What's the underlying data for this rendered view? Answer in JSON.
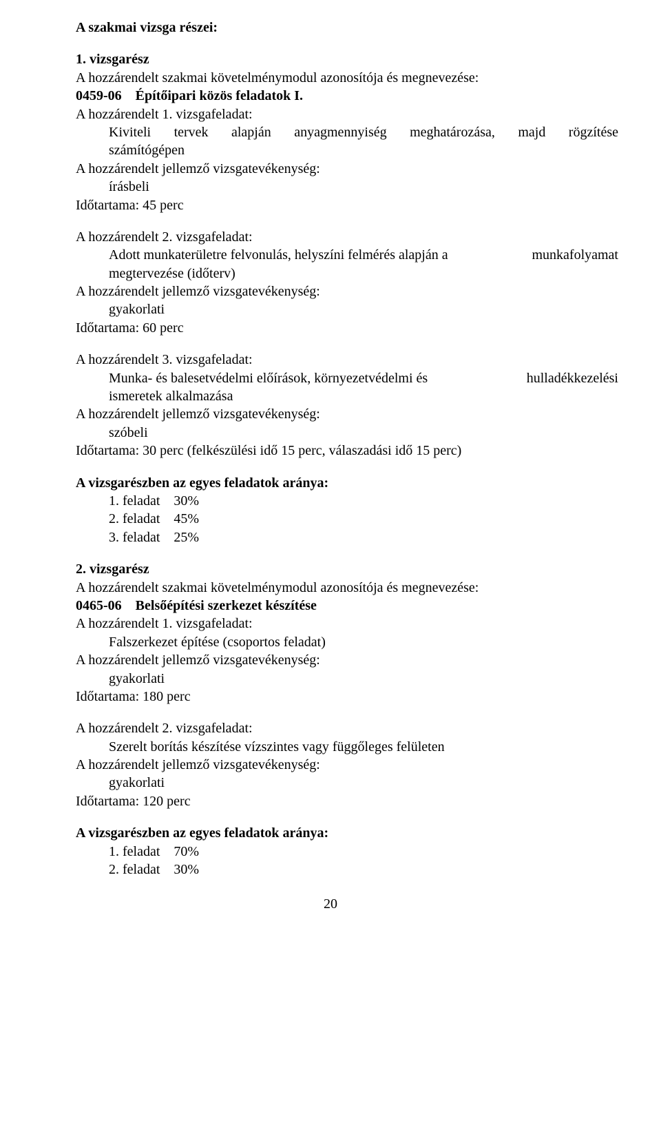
{
  "title": "A szakmai vizsga részei:",
  "part1": {
    "heading": "1. vizsgarész",
    "mod_line": "A hozzárendelt szakmai követelménymodul azonosítója és megnevezése:",
    "mod_code": "0459-06",
    "mod_name": "Építőipari közös feladatok I.",
    "task1": {
      "head": "A hozzárendelt 1. vizsgafeladat:",
      "desc_l": "Kiviteli",
      "desc_m1": "tervek",
      "desc_m2": "alapján",
      "desc_m3": "anyagmennyiség",
      "desc_m4": "meghatározása,",
      "desc_m5": "majd",
      "desc_r": "rögzítése",
      "desc2": "számítógépen",
      "act_label": "A hozzárendelt jellemző vizsgatevékenység:",
      "act": "írásbeli",
      "dur": "Időtartama:  45 perc"
    },
    "task2": {
      "head": "A hozzárendelt 2. vizsgafeladat:",
      "desc_l": "Adott munkaterületre felvonulás, helyszíni felmérés alapján a",
      "desc_r": "munkafolyamat",
      "desc2": "megtervezése (időterv)",
      "act_label": "A hozzárendelt jellemző vizsgatevékenység:",
      "act": "gyakorlati",
      "dur": "Időtartama:  60 perc"
    },
    "task3": {
      "head": "A hozzárendelt 3. vizsgafeladat:",
      "desc_l": "Munka- és balesetvédelmi előírások, környezetvédelmi és",
      "desc_r": "hulladékkezelési",
      "desc2": "ismeretek alkalmazása",
      "act_label": "A hozzárendelt jellemző vizsgatevékenység:",
      "act": "szóbeli",
      "dur": "Időtartama:  30 perc (felkészülési idő 15 perc, válaszadási idő 15 perc)"
    },
    "ratios": {
      "heading": "A vizsgarészben az egyes feladatok aránya:",
      "rows": [
        {
          "label": "1. feladat",
          "val": "30%"
        },
        {
          "label": "2. feladat",
          "val": "45%"
        },
        {
          "label": "3. feladat",
          "val": "25%"
        }
      ]
    }
  },
  "part2": {
    "heading": "2. vizsgarész",
    "mod_line": "A hozzárendelt szakmai követelménymodul azonosítója és megnevezése:",
    "mod_code": "0465-06",
    "mod_name": "Belsőépítési szerkezet készítése",
    "task1": {
      "head": "A hozzárendelt 1. vizsgafeladat:",
      "desc": "Falszerkezet építése (csoportos feladat)",
      "act_label": "A hozzárendelt jellemző vizsgatevékenység:",
      "act": "gyakorlati",
      "dur": "Időtartama:  180 perc"
    },
    "task2": {
      "head": "A hozzárendelt 2. vizsgafeladat:",
      "desc": "Szerelt borítás készítése vízszintes vagy függőleges felületen",
      "act_label": "A hozzárendelt jellemző vizsgatevékenység:",
      "act": "gyakorlati",
      "dur": "Időtartama:  120 perc"
    },
    "ratios": {
      "heading": "A vizsgarészben az egyes feladatok aránya:",
      "rows": [
        {
          "label": "1. feladat",
          "val": "70%"
        },
        {
          "label": "2. feladat",
          "val": "30%"
        }
      ]
    }
  },
  "page_number": "20"
}
